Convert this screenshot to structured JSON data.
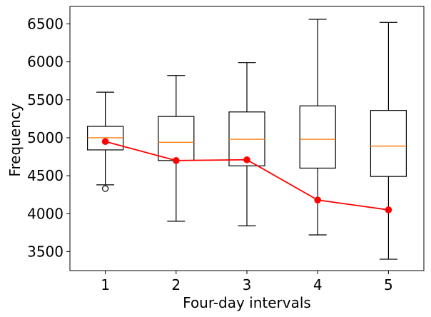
{
  "chart_data": {
    "type": "box",
    "xlabel": "Four-day intervals",
    "ylabel": "Frequency",
    "categories": [
      "1",
      "2",
      "3",
      "4",
      "5"
    ],
    "ylim": [
      3250,
      6730
    ],
    "yticks": [
      3500,
      4000,
      4500,
      5000,
      5500,
      6000,
      6500
    ],
    "grid": false,
    "boxes": [
      {
        "whisker_low": 4380,
        "q1": 4840,
        "median": 5000,
        "q3": 5150,
        "whisker_high": 5600,
        "outliers": [
          4330
        ]
      },
      {
        "whisker_low": 3900,
        "q1": 4700,
        "median": 4940,
        "q3": 5280,
        "whisker_high": 5820,
        "outliers": []
      },
      {
        "whisker_low": 3840,
        "q1": 4630,
        "median": 4980,
        "q3": 5340,
        "whisker_high": 5990,
        "outliers": []
      },
      {
        "whisker_low": 3720,
        "q1": 4600,
        "median": 4980,
        "q3": 5420,
        "whisker_high": 6560,
        "outliers": []
      },
      {
        "whisker_low": 3400,
        "q1": 4490,
        "median": 4890,
        "q3": 5360,
        "whisker_high": 6520,
        "outliers": []
      }
    ],
    "line_series": {
      "values": [
        4950,
        4700,
        4710,
        4180,
        4050
      ],
      "color": "#ff0000"
    },
    "colors": {
      "box": "#000000",
      "median": "#ff7f0e",
      "line": "#ff0000"
    }
  }
}
